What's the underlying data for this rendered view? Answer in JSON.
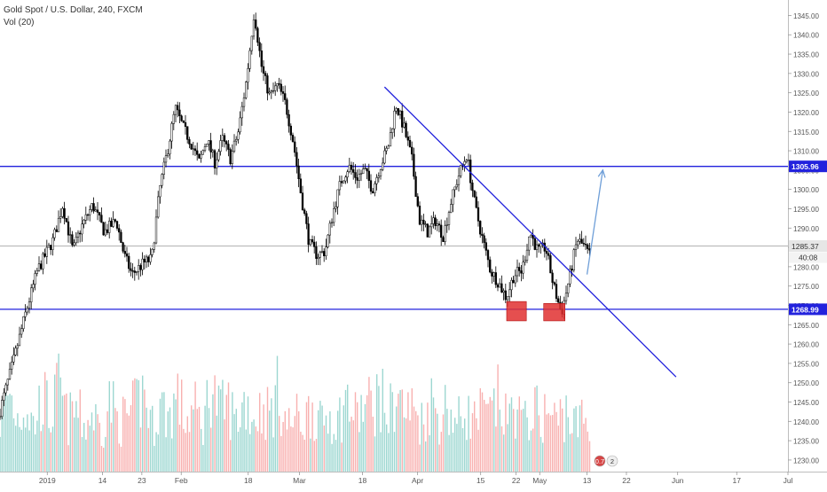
{
  "header": {
    "symbol": "Gold Spot / U.S. Dollar, 240, FXCM",
    "indicator": "Vol (20)"
  },
  "colors": {
    "up": "#26a69a",
    "down": "#ef5350",
    "candle": "#000000",
    "level_line": "#2222dd",
    "trend_line": "#2222dd",
    "arrow": "#6f9fd8",
    "box": "#e03030",
    "axis_text": "#555555"
  },
  "chart_data": {
    "type": "candlestick",
    "title": "",
    "y_axis": {
      "min": 1227,
      "max": 1349,
      "ticks": [
        1230,
        1235,
        1240,
        1245,
        1250,
        1255,
        1260,
        1265,
        1270,
        1275,
        1280,
        1285,
        1290,
        1295,
        1300,
        1305,
        1310,
        1315,
        1320,
        1325,
        1330,
        1335,
        1340,
        1345
      ]
    },
    "x_axis": {
      "ticks": [
        {
          "label": "2019",
          "x": 0.06
        },
        {
          "label": "14",
          "x": 0.13
        },
        {
          "label": "23",
          "x": 0.18
        },
        {
          "label": "Feb",
          "x": 0.23
        },
        {
          "label": "18",
          "x": 0.315
        },
        {
          "label": "Mar",
          "x": 0.38
        },
        {
          "label": "18",
          "x": 0.46
        },
        {
          "label": "Apr",
          "x": 0.53
        },
        {
          "label": "15",
          "x": 0.61
        },
        {
          "label": "22",
          "x": 0.655
        },
        {
          "label": "May",
          "x": 0.685
        },
        {
          "label": "13",
          "x": 0.745
        },
        {
          "label": "22",
          "x": 0.795
        },
        {
          "label": "Jun",
          "x": 0.86
        },
        {
          "label": "17",
          "x": 0.935
        },
        {
          "label": "Jul",
          "x": 1.0
        }
      ]
    },
    "price_path": [
      {
        "x": 0.0,
        "y": 1241
      },
      {
        "x": 0.02,
        "y": 1256
      },
      {
        "x": 0.035,
        "y": 1268
      },
      {
        "x": 0.05,
        "y": 1279
      },
      {
        "x": 0.07,
        "y": 1287
      },
      {
        "x": 0.082,
        "y": 1296
      },
      {
        "x": 0.095,
        "y": 1284
      },
      {
        "x": 0.105,
        "y": 1290
      },
      {
        "x": 0.12,
        "y": 1296
      },
      {
        "x": 0.135,
        "y": 1289
      },
      {
        "x": 0.15,
        "y": 1292
      },
      {
        "x": 0.16,
        "y": 1283
      },
      {
        "x": 0.17,
        "y": 1278
      },
      {
        "x": 0.185,
        "y": 1281
      },
      {
        "x": 0.195,
        "y": 1282
      },
      {
        "x": 0.205,
        "y": 1300
      },
      {
        "x": 0.215,
        "y": 1310
      },
      {
        "x": 0.225,
        "y": 1321
      },
      {
        "x": 0.235,
        "y": 1316
      },
      {
        "x": 0.245,
        "y": 1312
      },
      {
        "x": 0.255,
        "y": 1307
      },
      {
        "x": 0.265,
        "y": 1313
      },
      {
        "x": 0.275,
        "y": 1307
      },
      {
        "x": 0.285,
        "y": 1313
      },
      {
        "x": 0.295,
        "y": 1308
      },
      {
        "x": 0.305,
        "y": 1315
      },
      {
        "x": 0.315,
        "y": 1328
      },
      {
        "x": 0.325,
        "y": 1346
      },
      {
        "x": 0.335,
        "y": 1331
      },
      {
        "x": 0.345,
        "y": 1324
      },
      {
        "x": 0.355,
        "y": 1327
      },
      {
        "x": 0.365,
        "y": 1322
      },
      {
        "x": 0.375,
        "y": 1312
      },
      {
        "x": 0.385,
        "y": 1298
      },
      {
        "x": 0.395,
        "y": 1286
      },
      {
        "x": 0.405,
        "y": 1283
      },
      {
        "x": 0.415,
        "y": 1284
      },
      {
        "x": 0.425,
        "y": 1294
      },
      {
        "x": 0.435,
        "y": 1302
      },
      {
        "x": 0.445,
        "y": 1306
      },
      {
        "x": 0.455,
        "y": 1303
      },
      {
        "x": 0.465,
        "y": 1305
      },
      {
        "x": 0.475,
        "y": 1300
      },
      {
        "x": 0.485,
        "y": 1306
      },
      {
        "x": 0.495,
        "y": 1311
      },
      {
        "x": 0.505,
        "y": 1322
      },
      {
        "x": 0.515,
        "y": 1316
      },
      {
        "x": 0.525,
        "y": 1308
      },
      {
        "x": 0.535,
        "y": 1292
      },
      {
        "x": 0.545,
        "y": 1289
      },
      {
        "x": 0.555,
        "y": 1292
      },
      {
        "x": 0.565,
        "y": 1288
      },
      {
        "x": 0.575,
        "y": 1297
      },
      {
        "x": 0.585,
        "y": 1304
      },
      {
        "x": 0.595,
        "y": 1309
      },
      {
        "x": 0.605,
        "y": 1296
      },
      {
        "x": 0.615,
        "y": 1287
      },
      {
        "x": 0.625,
        "y": 1279
      },
      {
        "x": 0.635,
        "y": 1276
      },
      {
        "x": 0.645,
        "y": 1272
      },
      {
        "x": 0.655,
        "y": 1278
      },
      {
        "x": 0.665,
        "y": 1279
      },
      {
        "x": 0.675,
        "y": 1289
      },
      {
        "x": 0.685,
        "y": 1284
      },
      {
        "x": 0.695,
        "y": 1285
      },
      {
        "x": 0.705,
        "y": 1275
      },
      {
        "x": 0.715,
        "y": 1268
      },
      {
        "x": 0.725,
        "y": 1277
      },
      {
        "x": 0.735,
        "y": 1287
      },
      {
        "x": 0.745,
        "y": 1285
      },
      {
        "x": 0.75,
        "y": 1283
      }
    ],
    "volume_path": [
      0.55,
      0.9,
      0.6,
      0.75,
      0.5,
      0.85,
      0.6,
      0.95,
      0.55,
      0.7,
      0.5,
      0.65,
      0.45,
      0.8,
      0.55,
      0.6,
      0.7,
      0.9,
      0.5,
      0.75,
      0.6,
      0.85,
      0.55,
      0.7,
      0.5,
      1.0,
      0.65,
      0.75,
      0.55,
      0.8,
      0.6,
      0.7,
      0.65,
      0.9,
      0.5,
      0.6,
      0.55,
      0.75,
      0.5,
      0.65,
      0.55,
      0.8,
      0.6,
      0.7,
      0.75,
      0.85,
      0.6,
      0.9,
      0.65,
      0.7,
      0.55,
      0.8,
      0.6,
      0.75,
      0.5,
      0.7,
      0.55,
      0.65,
      0.6,
      0.8,
      0.55,
      0.75,
      0.5,
      0.7,
      0.6,
      0.65,
      0.55,
      0.7,
      0.5,
      0.6,
      0.45
    ],
    "levels": [
      {
        "price": 1305.96,
        "label": "1305.96"
      },
      {
        "price": 1268.99,
        "label": "1268.99"
      }
    ],
    "current_price": {
      "price": 1285.37,
      "label": "1285.37",
      "countdown": "40:08"
    },
    "trendline": {
      "start": {
        "x": 0.488,
        "y": 1326.5
      },
      "end": {
        "x": 0.858,
        "y": 1251.5
      }
    },
    "arrow": {
      "start": {
        "x": 0.745,
        "y": 1278
      },
      "end": {
        "x": 0.765,
        "y": 1305
      }
    },
    "boxes": [
      {
        "x0": 0.643,
        "x1": 0.668,
        "y0": 1271,
        "y1": 1266
      },
      {
        "x0": 0.69,
        "x1": 0.717,
        "y0": 1270.5,
        "y1": 1266
      }
    ],
    "event_markers": [
      "0.7",
      "2"
    ]
  }
}
